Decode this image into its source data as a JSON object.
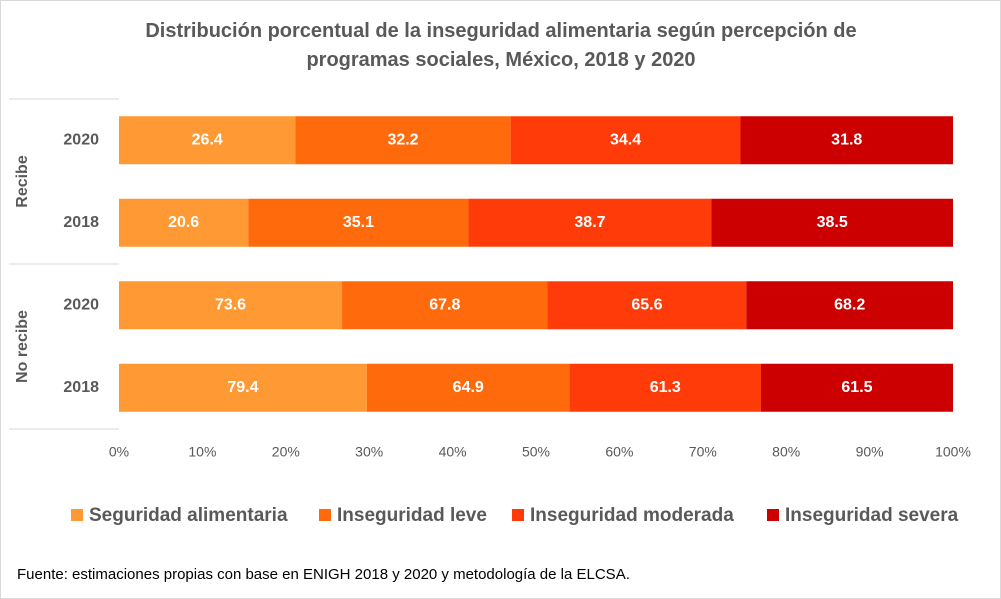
{
  "chart_data": {
    "type": "stacked-bar-100",
    "title": "Distribución porcentual de la inseguridad alimentaria según percepción de programas sociales, México, 2018 y 2020",
    "groups": [
      "Recibe",
      "No recibe"
    ],
    "categories": [
      "2020",
      "2018",
      "2020",
      "2018"
    ],
    "series": [
      {
        "name": "Seguridad alimentaria",
        "color": "#ff9933",
        "values": [
          26.4,
          20.6,
          73.6,
          79.4
        ]
      },
      {
        "name": "Inseguridad leve",
        "color": "#ff6a0d",
        "values": [
          32.2,
          35.1,
          67.8,
          64.9
        ]
      },
      {
        "name": "Inseguridad moderada",
        "color": "#ff3b0a",
        "values": [
          34.4,
          38.7,
          65.6,
          61.3
        ]
      },
      {
        "name": "Inseguridad severa",
        "color": "#cc0000",
        "values": [
          31.8,
          38.5,
          68.2,
          61.5
        ]
      }
    ],
    "xlim": [
      0,
      100
    ],
    "xticks": [
      {
        "value": 0,
        "label": "0%"
      },
      {
        "value": 10,
        "label": "10%"
      },
      {
        "value": 20,
        "label": "20%"
      },
      {
        "value": 30,
        "label": "30%"
      },
      {
        "value": 40,
        "label": "40%"
      },
      {
        "value": 50,
        "label": "50%"
      },
      {
        "value": 60,
        "label": "60%"
      },
      {
        "value": 70,
        "label": "70%"
      },
      {
        "value": 80,
        "label": "80%"
      },
      {
        "value": 90,
        "label": "90%"
      },
      {
        "value": 100,
        "label": "100%"
      }
    ],
    "legend": "bottom",
    "source": "Fuente: estimaciones propias con base en ENIGH 2018 y 2020 y metodología de la ELCSA."
  }
}
